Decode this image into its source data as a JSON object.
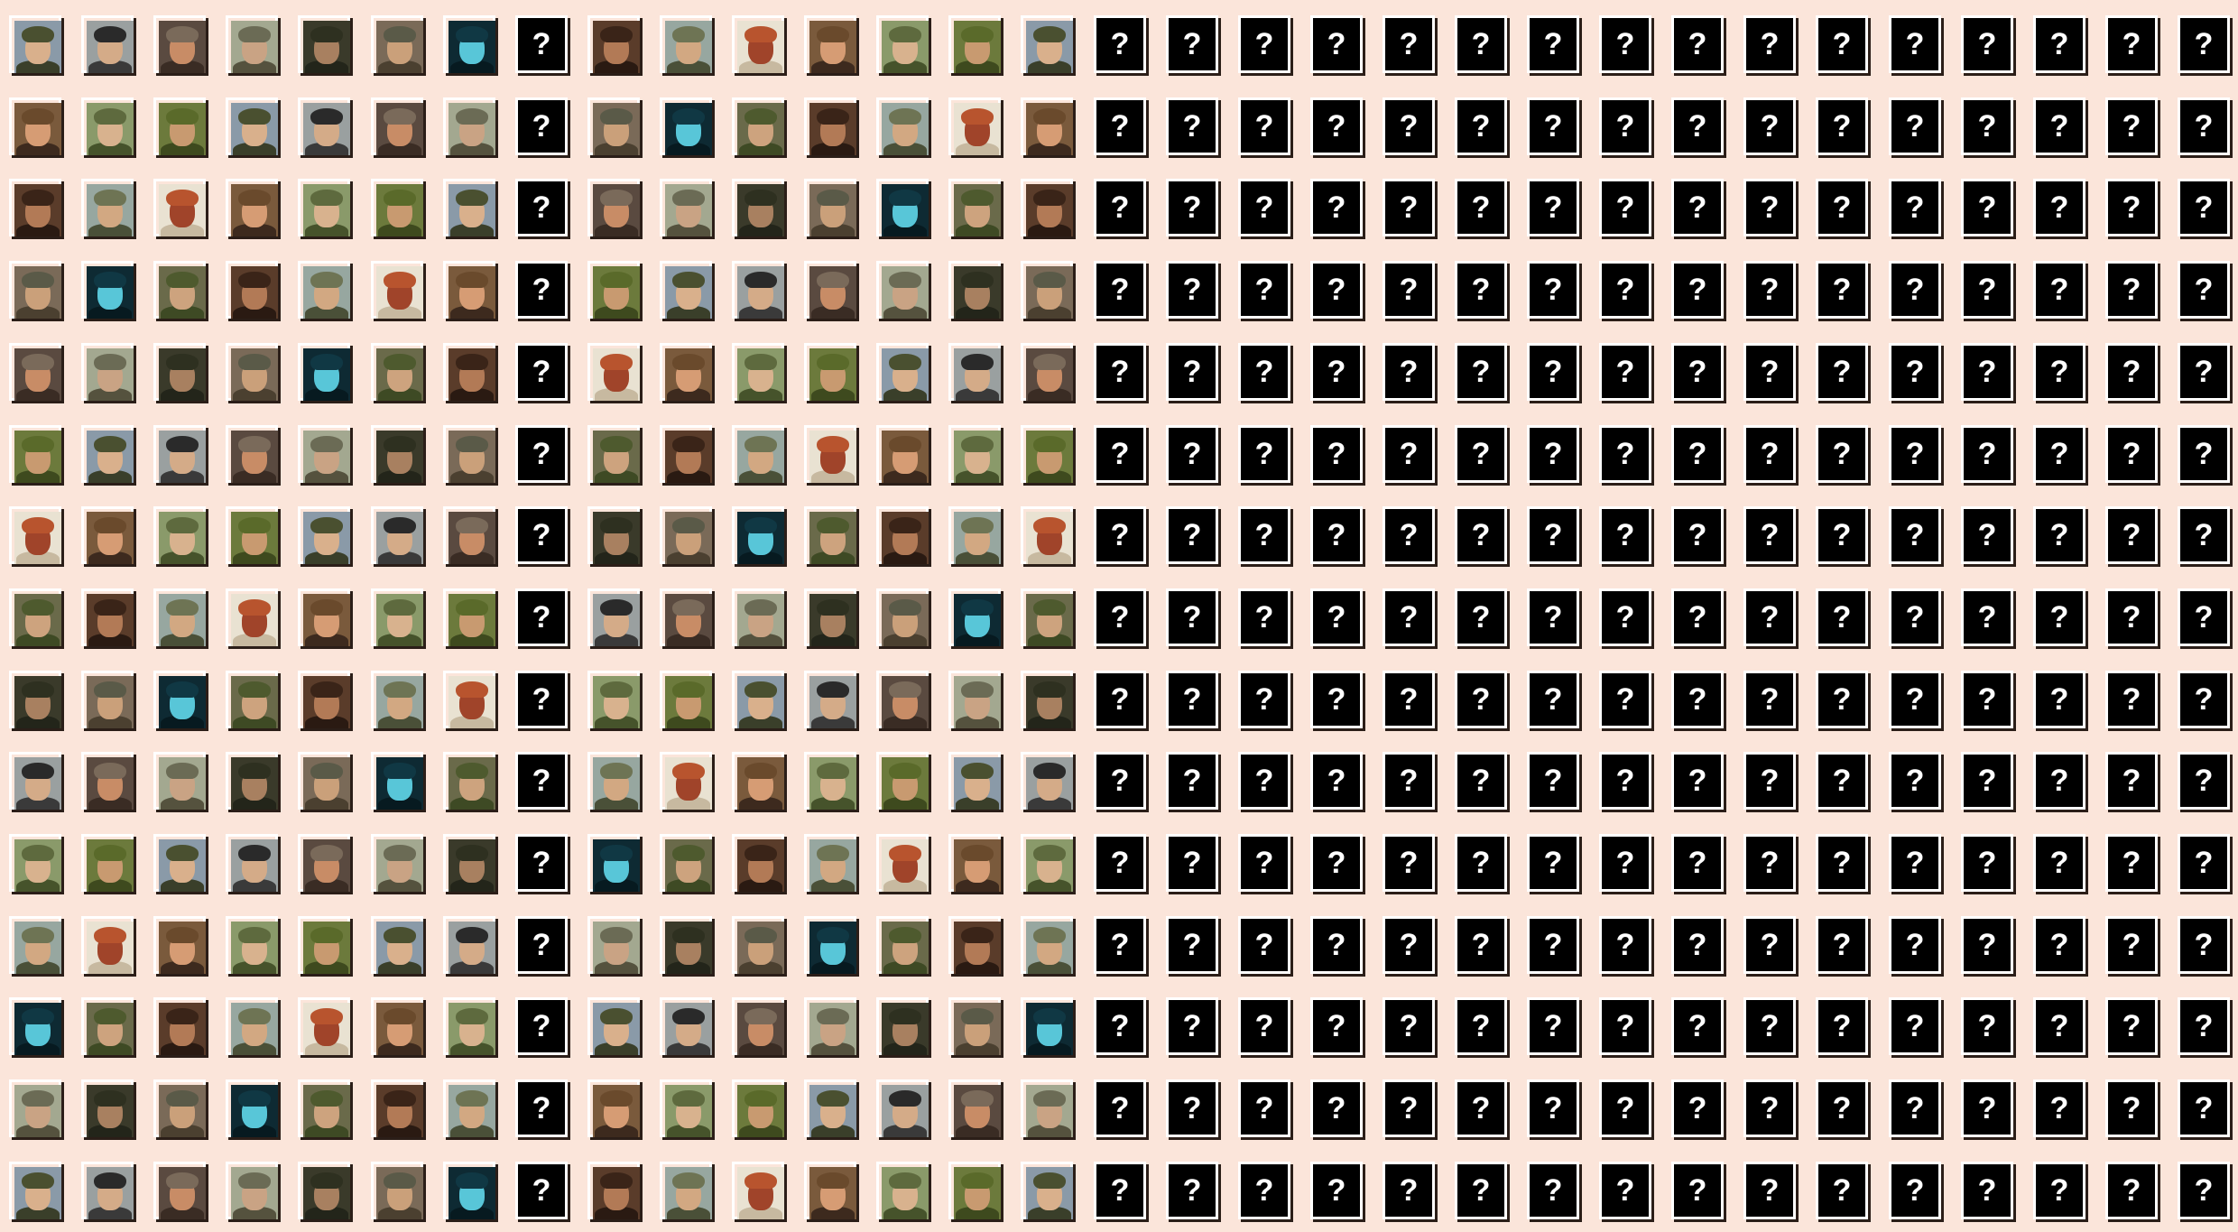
{
  "gallery": {
    "columns": 31,
    "rows": 15,
    "revealed_columns": 15,
    "unknown_column_indexes_in_revealed_block": [
      7
    ],
    "unknown_symbol": "?",
    "background_color": "#fbe5da",
    "tile_border_color": "#ffffff",
    "tile_shadow_color": "#2b1e18",
    "unknown_tile_color": "#000000",
    "portrait_palettes": [
      {
        "bg": "#8a9aa8",
        "skin": "#d9b08c",
        "hat": "#4a5030",
        "body": "#3a3f2a"
      },
      {
        "bg": "#7a6a58",
        "skin": "#caa07a",
        "hat": "#5a5a48",
        "body": "#4b4030"
      },
      {
        "bg": "#e9e2d2",
        "skin": "#a0442a",
        "hat": "#b8542e",
        "body": "#c7b9a0"
      },
      {
        "bg": "#9aa0a0",
        "skin": "#d4ab88",
        "hat": "#2a2a2a",
        "body": "#3a3a3a"
      },
      {
        "bg": "#0e2a33",
        "skin": "#58c6d8",
        "hat": "#103844",
        "body": "#071a20"
      },
      {
        "bg": "#7a5a3c",
        "skin": "#d69c74",
        "hat": "#6a4a2c",
        "body": "#3d2a1e"
      },
      {
        "bg": "#5a4a40",
        "skin": "#c88c66",
        "hat": "#7a6a5a",
        "body": "#3a2c24"
      },
      {
        "bg": "#6a6a4a",
        "skin": "#cda37e",
        "hat": "#4e5a2e",
        "body": "#3e4a24"
      },
      {
        "bg": "#8a9a6a",
        "skin": "#d8b28e",
        "hat": "#5e6a3e",
        "body": "#46532b"
      },
      {
        "bg": "#a3a890",
        "skin": "#c9a384",
        "hat": "#6b6b55",
        "body": "#55523e"
      },
      {
        "bg": "#5a3c2a",
        "skin": "#b27a56",
        "hat": "#3a2418",
        "body": "#2a1a12"
      },
      {
        "bg": "#6c7a3c",
        "skin": "#c89a70",
        "hat": "#5a6a2a",
        "body": "#3e4a1e"
      },
      {
        "bg": "#3a3a2a",
        "skin": "#a88060",
        "hat": "#2e3020",
        "body": "#23251a"
      },
      {
        "bg": "#97a7a0",
        "skin": "#d2a882",
        "hat": "#6e7454",
        "body": "#4a5038"
      }
    ]
  }
}
